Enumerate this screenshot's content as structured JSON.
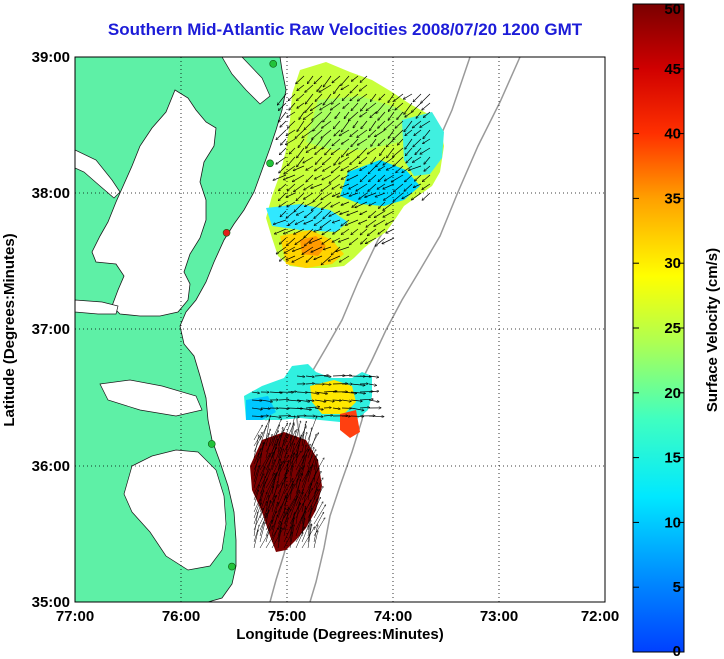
{
  "title": "Southern Mid-Atlantic Raw Velocities 2008/07/20 1200 GMT",
  "map": {
    "xlabel": "Longitude (Degrees:Minutes)",
    "ylabel": "Latitude (Degrees:Minutes)",
    "lon_range": [
      -77,
      -72
    ],
    "lat_range": [
      35,
      39
    ],
    "lon_ticks": [
      "77:00",
      "76:00",
      "75:00",
      "74:00",
      "73:00",
      "72:00"
    ],
    "lat_ticks": [
      "35:00",
      "36:00",
      "37:00",
      "38:00",
      "39:00"
    ],
    "grid": "dotted",
    "colors": {
      "land": "#5ef0a6",
      "coast": "#1a1a1a",
      "isobath": "#9a9a9a",
      "station": "#22c33a",
      "station_alert": "#e0201a",
      "vector": "#000000"
    },
    "stations": [
      {
        "lon": -75.13,
        "lat": 38.95,
        "status": "ok"
      },
      {
        "lon": -75.16,
        "lat": 38.22,
        "status": "ok"
      },
      {
        "lon": -75.57,
        "lat": 37.71,
        "status": "alert"
      },
      {
        "lon": -75.71,
        "lat": 36.16,
        "status": "ok"
      },
      {
        "lon": -75.52,
        "lat": 35.26,
        "status": "ok"
      }
    ]
  },
  "colorbar": {
    "label": "Surface Velocity (cm/s)",
    "min": 0,
    "max": 50,
    "ticks": [
      "0",
      "5",
      "10",
      "15",
      "20",
      "25",
      "30",
      "35",
      "40",
      "45",
      "50"
    ],
    "colormap": "jet"
  }
}
